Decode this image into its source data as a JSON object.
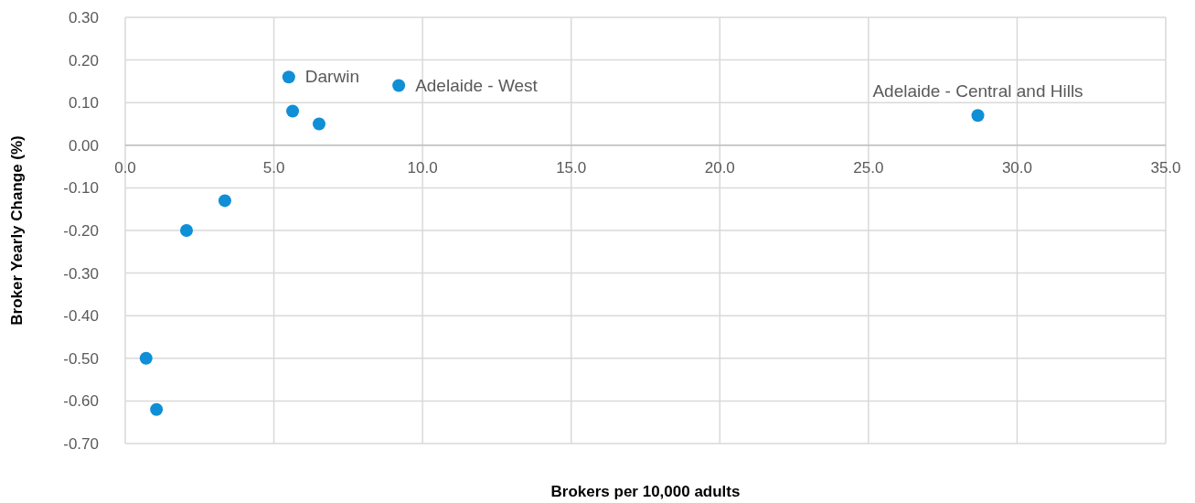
{
  "chart_data": {
    "type": "scatter",
    "xlabel": "Brokers per 10,000 adults",
    "ylabel": "Broker Yearly Change (%)",
    "x": [
      0.7,
      1.05,
      2.06,
      3.35,
      5.5,
      5.63,
      6.52,
      9.2,
      28.68
    ],
    "values": [
      -0.5,
      -0.62,
      -0.2,
      -0.13,
      0.16,
      0.08,
      0.05,
      0.14,
      0.07
    ],
    "color": "#0f8fd6",
    "marker": "circle",
    "xlim": [
      0,
      35
    ],
    "xticks": [
      {
        "value": 0,
        "label": "0.0"
      },
      {
        "value": 5,
        "label": "5.0"
      },
      {
        "value": 10,
        "label": "10.0"
      },
      {
        "value": 15,
        "label": "15.0"
      },
      {
        "value": 20,
        "label": "20.0"
      },
      {
        "value": 25,
        "label": "25.0"
      },
      {
        "value": 30,
        "label": "30.0"
      },
      {
        "value": 35,
        "label": "35.0"
      }
    ],
    "ylim": [
      -0.7,
      0.3
    ],
    "yticks": [
      {
        "value": 0.3,
        "label": "0.30"
      },
      {
        "value": 0.2,
        "label": "0.20"
      },
      {
        "value": 0.1,
        "label": "0.10"
      },
      {
        "value": 0,
        "label": "0.00"
      },
      {
        "value": -0.1,
        "label": "-0.10"
      },
      {
        "value": -0.2,
        "label": "-0.20"
      },
      {
        "value": -0.3,
        "label": "-0.30"
      },
      {
        "value": -0.4,
        "label": "-0.40"
      },
      {
        "value": -0.5,
        "label": "-0.50"
      },
      {
        "value": -0.6,
        "label": "-0.60"
      },
      {
        "value": -0.7,
        "label": "-0.70"
      }
    ],
    "grid": true,
    "annotations": [
      {
        "text": "Darwin",
        "x": 5.5,
        "y": 0.16
      },
      {
        "text": "Adelaide - West",
        "x": 9.2,
        "y": 0.14
      },
      {
        "text": "Adelaide - Central and Hills",
        "x": 28.68,
        "y": 0.07
      }
    ]
  }
}
